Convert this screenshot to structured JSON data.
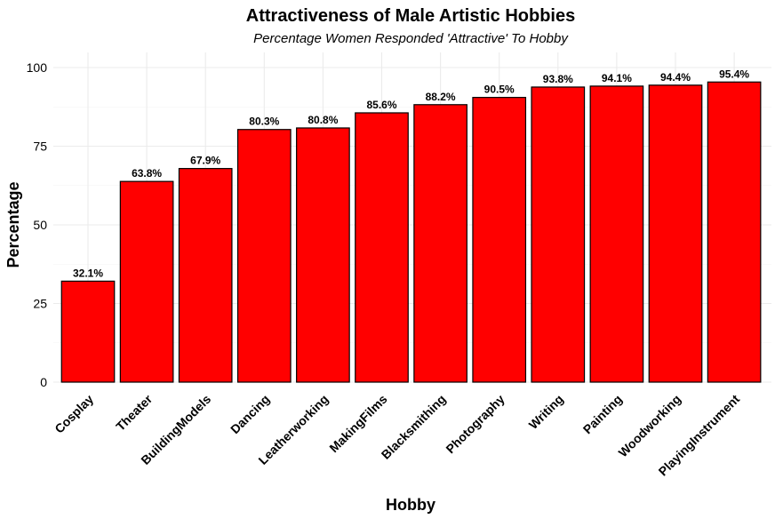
{
  "chart_data": {
    "type": "bar",
    "title": "Attractiveness of Male Artistic Hobbies",
    "subtitle": "Percentage Women Responded 'Attractive' To Hobby",
    "xlabel": "Hobby",
    "ylabel": "Percentage",
    "ylim": [
      0,
      100
    ],
    "yticks": [
      0,
      25,
      50,
      75,
      100
    ],
    "grid": true,
    "bar_color": "#ff0000",
    "categories": [
      "Cosplay",
      "Theater",
      "BuildingModels",
      "Dancing",
      "Leatherworking",
      "MakingFilms",
      "Blacksmithing",
      "Photography",
      "Writing",
      "Painting",
      "Woodworking",
      "PlayingInstrument"
    ],
    "values": [
      32.1,
      63.8,
      67.9,
      80.3,
      80.8,
      85.6,
      88.2,
      90.5,
      93.8,
      94.1,
      94.4,
      95.4
    ],
    "data_labels": [
      "32.1%",
      "63.8%",
      "67.9%",
      "80.3%",
      "80.8%",
      "85.6%",
      "88.2%",
      "90.5%",
      "93.8%",
      "94.1%",
      "94.4%",
      "95.4%"
    ]
  }
}
